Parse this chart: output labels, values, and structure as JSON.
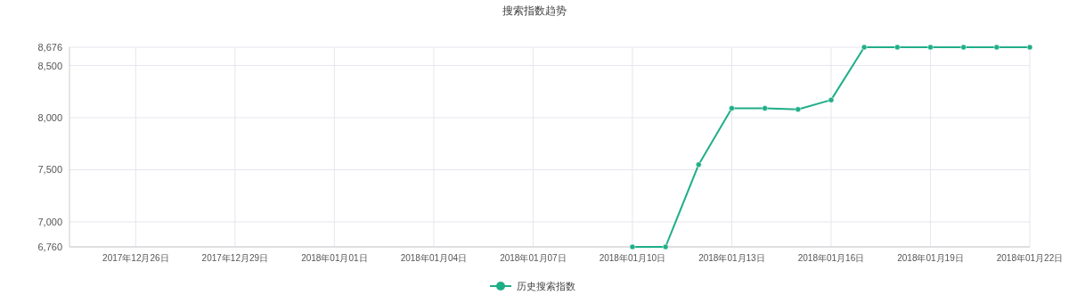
{
  "chart_data": {
    "type": "line",
    "title": "搜索指数趋势",
    "x": [
      "2018-01-10",
      "2018-01-11",
      "2018-01-12",
      "2018-01-13",
      "2018-01-14",
      "2018-01-15",
      "2018-01-16",
      "2018-01-17",
      "2018-01-18",
      "2018-01-19",
      "2018-01-20",
      "2018-01-21",
      "2018-01-22"
    ],
    "series": [
      {
        "name": "历史搜索指数",
        "color": "#1fae88",
        "values": [
          6760,
          6760,
          7550,
          8090,
          8090,
          8080,
          8170,
          8676,
          8676,
          8676,
          8676,
          8676,
          8676
        ]
      }
    ],
    "xlim": [
      "2017-12-24",
      "2018-01-22"
    ],
    "xticks": [
      {
        "value": "2017-12-26",
        "label": "2017年12月26日"
      },
      {
        "value": "2017-12-29",
        "label": "2017年12月29日"
      },
      {
        "value": "2018-01-01",
        "label": "2018年01月01日"
      },
      {
        "value": "2018-01-04",
        "label": "2018年01月04日"
      },
      {
        "value": "2018-01-07",
        "label": "2018年01月07日"
      },
      {
        "value": "2018-01-10",
        "label": "2018年01月10日"
      },
      {
        "value": "2018-01-13",
        "label": "2018年01月13日"
      },
      {
        "value": "2018-01-16",
        "label": "2018年01月16日"
      },
      {
        "value": "2018-01-19",
        "label": "2018年01月19日"
      },
      {
        "value": "2018-01-22",
        "label": "2018年01月22日"
      }
    ],
    "ylim": [
      6760,
      8676
    ],
    "yticks": [
      {
        "value": 6760,
        "label": "6,760"
      },
      {
        "value": 7000,
        "label": "7,000"
      },
      {
        "value": 7500,
        "label": "7,500"
      },
      {
        "value": 8000,
        "label": "8,000"
      },
      {
        "value": 8500,
        "label": "8,500"
      },
      {
        "value": 8676,
        "label": "8,676"
      }
    ],
    "grid": true,
    "legend": "bottom",
    "marker": "circle",
    "line_style": "solid"
  }
}
